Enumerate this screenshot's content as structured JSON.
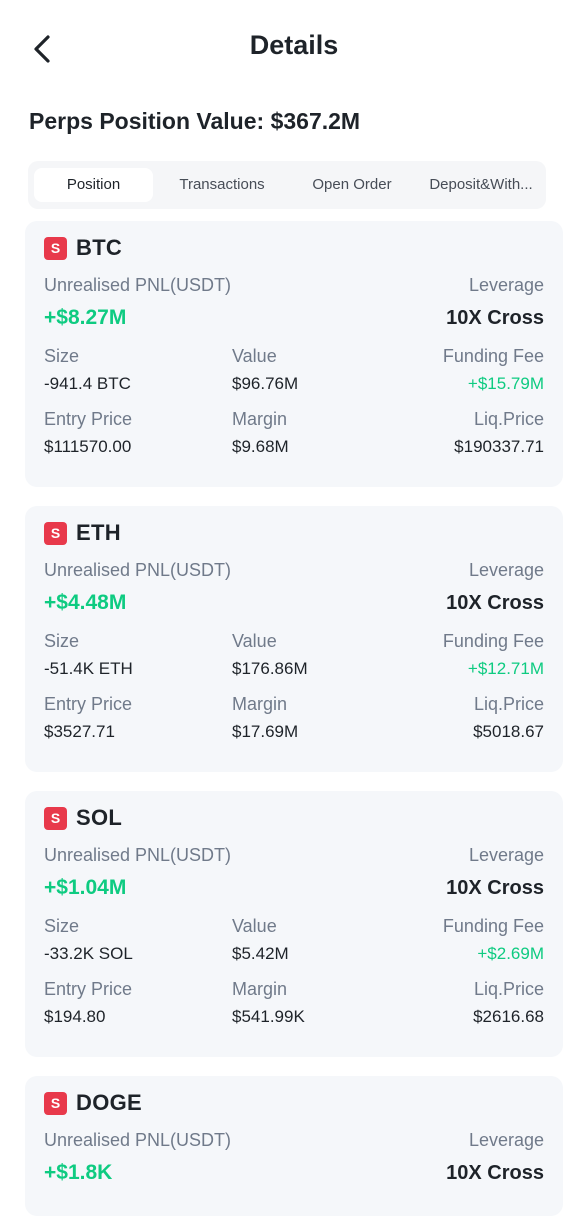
{
  "header": {
    "title": "Details",
    "back_icon": "chevron-left-icon"
  },
  "summary": "Perps Position Value: $367.2M",
  "tabs": [
    {
      "label": "Position",
      "active": true
    },
    {
      "label": "Transactions",
      "active": false
    },
    {
      "label": "Open Order",
      "active": false
    },
    {
      "label": "Deposit&With...",
      "active": false
    }
  ],
  "labels": {
    "side_badge": "S",
    "unrealised_pnl": "Unrealised PNL(USDT)",
    "leverage": "Leverage",
    "size": "Size",
    "value": "Value",
    "funding_fee": "Funding Fee",
    "entry_price": "Entry Price",
    "margin": "Margin",
    "liq_price": "Liq.Price"
  },
  "positions": [
    {
      "symbol": "BTC",
      "pnl": "+$8.27M",
      "leverage": "10X Cross",
      "size": "-941.4 BTC",
      "value": "$96.76M",
      "funding_fee": "+$15.79M",
      "entry_price": "$111570.00",
      "margin": "$9.68M",
      "liq_price": "$190337.71"
    },
    {
      "symbol": "ETH",
      "pnl": "+$4.48M",
      "leverage": "10X Cross",
      "size": "-51.4K ETH",
      "value": "$176.86M",
      "funding_fee": "+$12.71M",
      "entry_price": "$3527.71",
      "margin": "$17.69M",
      "liq_price": "$5018.67"
    },
    {
      "symbol": "SOL",
      "pnl": "+$1.04M",
      "leverage": "10X Cross",
      "size": "-33.2K SOL",
      "value": "$5.42M",
      "funding_fee": "+$2.69M",
      "entry_price": "$194.80",
      "margin": "$541.99K",
      "liq_price": "$2616.68"
    },
    {
      "symbol": "DOGE",
      "pnl": "+$1.8K",
      "leverage": "10X Cross"
    }
  ],
  "colors": {
    "positive": "#0ecb81",
    "short_badge": "#e8394b",
    "card_bg": "#f5f7fa"
  }
}
